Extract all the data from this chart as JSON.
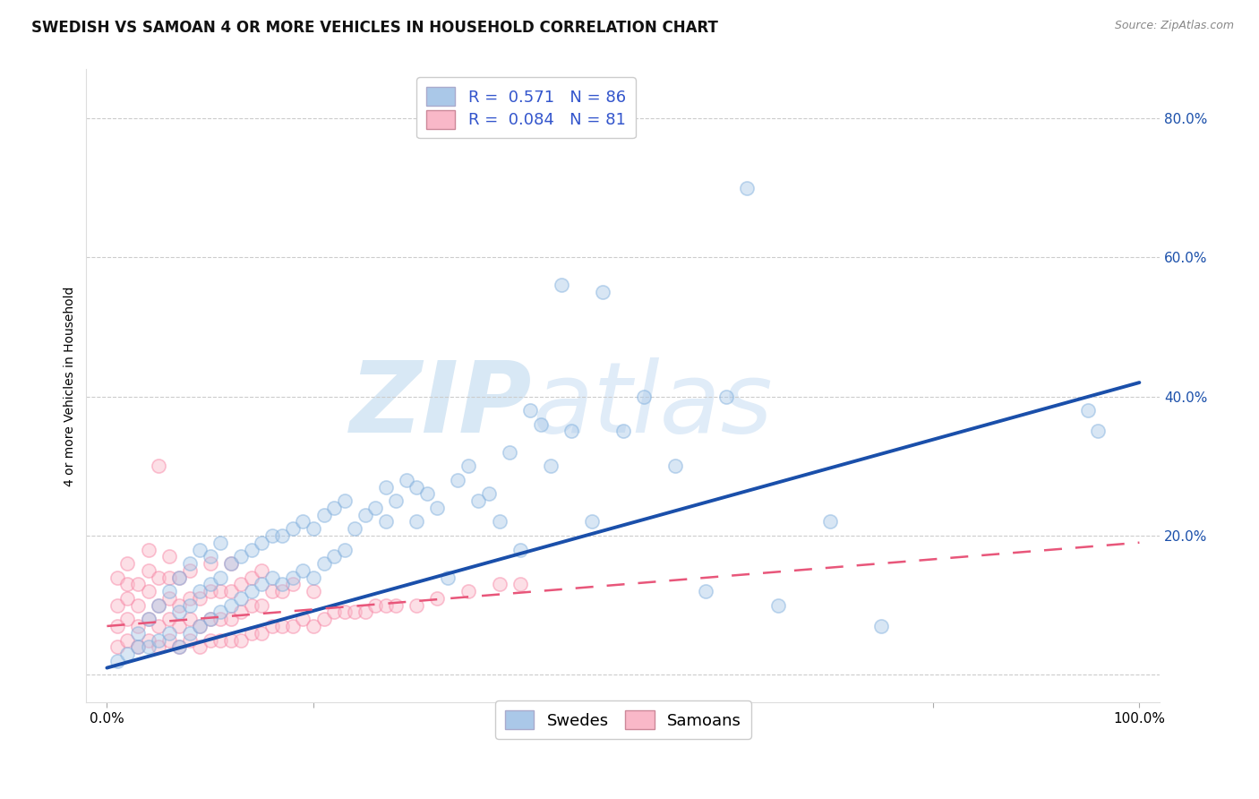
{
  "title": "SWEDISH VS SAMOAN 4 OR MORE VEHICLES IN HOUSEHOLD CORRELATION CHART",
  "source": "Source: ZipAtlas.com",
  "ylabel": "4 or more Vehicles in Household",
  "xlabel": "",
  "xlim": [
    -0.02,
    1.02
  ],
  "ylim": [
    -0.04,
    0.87
  ],
  "xticks": [
    0.0,
    0.2,
    0.4,
    0.6,
    0.8,
    1.0
  ],
  "xtick_labels": [
    "0.0%",
    "",
    "",
    "",
    "",
    "100.0%"
  ],
  "ytick_labels_right": [
    "",
    "20.0%",
    "40.0%",
    "60.0%",
    "80.0%"
  ],
  "yticks_right": [
    0.0,
    0.2,
    0.4,
    0.6,
    0.8
  ],
  "grid_color": "#cccccc",
  "background_color": "#ffffff",
  "watermark_zip": "ZIP",
  "watermark_atlas": "atlas",
  "watermark_color": "#d8e8f5",
  "blue_color": "#7aacdc",
  "pink_color": "#f87fa0",
  "blue_fill": "#aac8e8",
  "pink_fill": "#f9b8c8",
  "blue_line_color": "#1a4faa",
  "pink_line_color": "#e8567a",
  "legend_R_blue": "0.571",
  "legend_N_blue": "86",
  "legend_R_pink": "0.084",
  "legend_N_pink": "81",
  "legend_color": "#3355cc",
  "swedes_scatter_x": [
    0.01,
    0.02,
    0.03,
    0.03,
    0.04,
    0.04,
    0.05,
    0.05,
    0.06,
    0.06,
    0.07,
    0.07,
    0.07,
    0.08,
    0.08,
    0.08,
    0.09,
    0.09,
    0.09,
    0.1,
    0.1,
    0.1,
    0.11,
    0.11,
    0.11,
    0.12,
    0.12,
    0.13,
    0.13,
    0.14,
    0.14,
    0.15,
    0.15,
    0.16,
    0.16,
    0.17,
    0.17,
    0.18,
    0.18,
    0.19,
    0.19,
    0.2,
    0.2,
    0.21,
    0.21,
    0.22,
    0.22,
    0.23,
    0.23,
    0.24,
    0.25,
    0.26,
    0.27,
    0.27,
    0.28,
    0.29,
    0.3,
    0.3,
    0.31,
    0.32,
    0.33,
    0.34,
    0.35,
    0.36,
    0.37,
    0.38,
    0.39,
    0.4,
    0.41,
    0.42,
    0.43,
    0.44,
    0.45,
    0.47,
    0.48,
    0.5,
    0.52,
    0.55,
    0.58,
    0.6,
    0.62,
    0.65,
    0.7,
    0.75,
    0.95,
    0.96
  ],
  "swedes_scatter_y": [
    0.02,
    0.03,
    0.04,
    0.06,
    0.04,
    0.08,
    0.05,
    0.1,
    0.06,
    0.12,
    0.04,
    0.09,
    0.14,
    0.06,
    0.1,
    0.16,
    0.07,
    0.12,
    0.18,
    0.08,
    0.13,
    0.17,
    0.09,
    0.14,
    0.19,
    0.1,
    0.16,
    0.11,
    0.17,
    0.12,
    0.18,
    0.13,
    0.19,
    0.14,
    0.2,
    0.13,
    0.2,
    0.14,
    0.21,
    0.15,
    0.22,
    0.14,
    0.21,
    0.16,
    0.23,
    0.17,
    0.24,
    0.18,
    0.25,
    0.21,
    0.23,
    0.24,
    0.22,
    0.27,
    0.25,
    0.28,
    0.22,
    0.27,
    0.26,
    0.24,
    0.14,
    0.28,
    0.3,
    0.25,
    0.26,
    0.22,
    0.32,
    0.18,
    0.38,
    0.36,
    0.3,
    0.56,
    0.35,
    0.22,
    0.55,
    0.35,
    0.4,
    0.3,
    0.12,
    0.4,
    0.7,
    0.1,
    0.22,
    0.07,
    0.38,
    0.35
  ],
  "samoans_scatter_x": [
    0.01,
    0.01,
    0.01,
    0.01,
    0.02,
    0.02,
    0.02,
    0.02,
    0.02,
    0.03,
    0.03,
    0.03,
    0.03,
    0.04,
    0.04,
    0.04,
    0.04,
    0.04,
    0.05,
    0.05,
    0.05,
    0.05,
    0.06,
    0.06,
    0.06,
    0.06,
    0.06,
    0.07,
    0.07,
    0.07,
    0.07,
    0.08,
    0.08,
    0.08,
    0.08,
    0.09,
    0.09,
    0.09,
    0.1,
    0.1,
    0.1,
    0.1,
    0.11,
    0.11,
    0.11,
    0.12,
    0.12,
    0.12,
    0.12,
    0.13,
    0.13,
    0.13,
    0.14,
    0.14,
    0.14,
    0.15,
    0.15,
    0.15,
    0.16,
    0.16,
    0.17,
    0.17,
    0.18,
    0.18,
    0.19,
    0.2,
    0.2,
    0.21,
    0.22,
    0.23,
    0.24,
    0.25,
    0.26,
    0.27,
    0.28,
    0.3,
    0.32,
    0.35,
    0.38,
    0.4,
    0.05
  ],
  "samoans_scatter_y": [
    0.04,
    0.07,
    0.1,
    0.14,
    0.05,
    0.08,
    0.11,
    0.13,
    0.16,
    0.04,
    0.07,
    0.1,
    0.13,
    0.05,
    0.08,
    0.12,
    0.15,
    0.18,
    0.04,
    0.07,
    0.1,
    0.14,
    0.05,
    0.08,
    0.11,
    0.14,
    0.17,
    0.04,
    0.07,
    0.1,
    0.14,
    0.05,
    0.08,
    0.11,
    0.15,
    0.04,
    0.07,
    0.11,
    0.05,
    0.08,
    0.12,
    0.16,
    0.05,
    0.08,
    0.12,
    0.05,
    0.08,
    0.12,
    0.16,
    0.05,
    0.09,
    0.13,
    0.06,
    0.1,
    0.14,
    0.06,
    0.1,
    0.15,
    0.07,
    0.12,
    0.07,
    0.12,
    0.07,
    0.13,
    0.08,
    0.07,
    0.12,
    0.08,
    0.09,
    0.09,
    0.09,
    0.09,
    0.1,
    0.1,
    0.1,
    0.1,
    0.11,
    0.12,
    0.13,
    0.13,
    0.3
  ],
  "blue_trendline_x": [
    0.0,
    1.0
  ],
  "blue_trendline_y": [
    0.01,
    0.42
  ],
  "pink_trendline_x": [
    0.0,
    1.0
  ],
  "pink_trendline_y": [
    0.07,
    0.19
  ],
  "title_fontsize": 12,
  "label_fontsize": 10,
  "tick_fontsize": 11,
  "legend_fontsize": 13,
  "dot_size": 120,
  "dot_alpha": 0.45,
  "dot_linewidth": 1.2
}
